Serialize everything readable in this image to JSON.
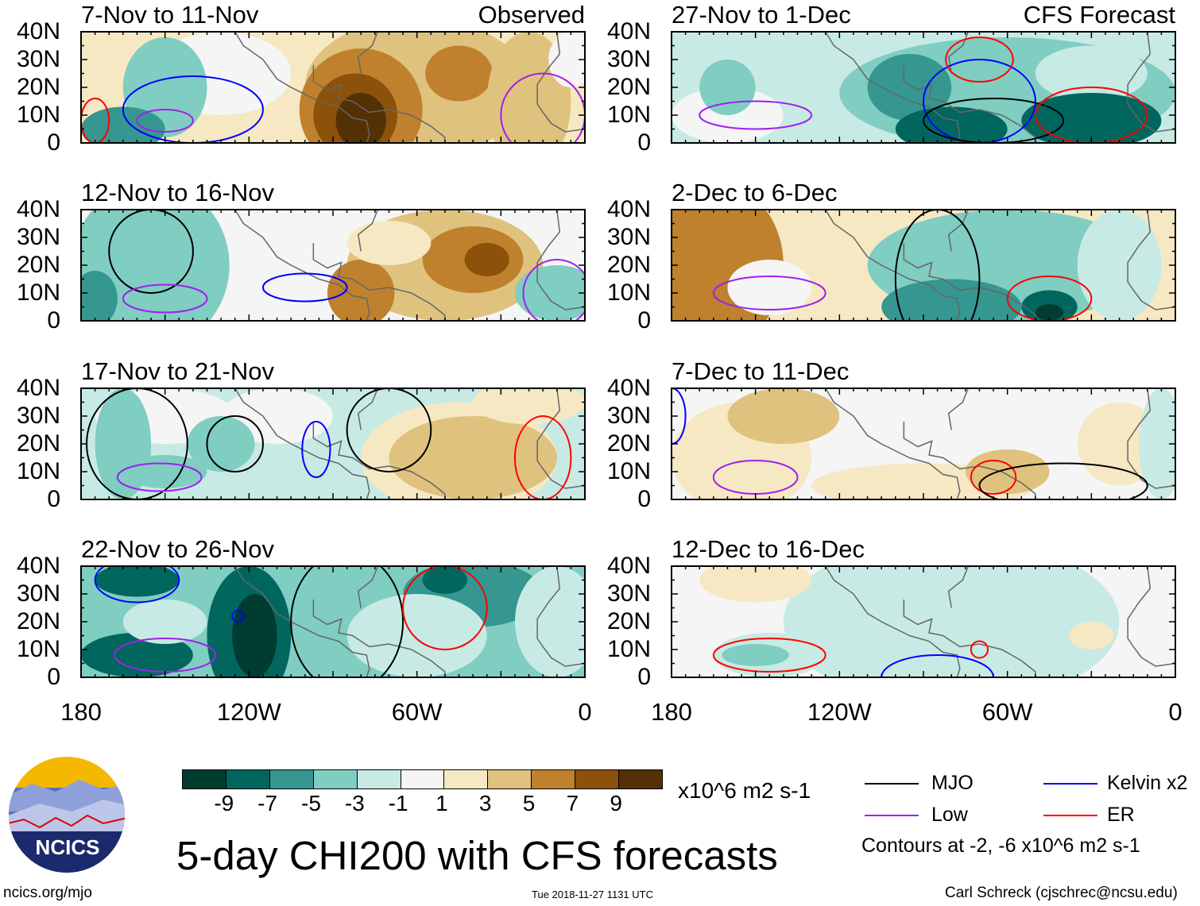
{
  "chart_data": {
    "type": "heatmap",
    "title": "5-day CHI200 with CFS forecasts",
    "units": "x10^6 m2 s-1",
    "colorbar": {
      "ticks": [
        "-9",
        "-7",
        "-5",
        "-3",
        "-1",
        "1",
        "3",
        "5",
        "7",
        "9"
      ],
      "colors": [
        "#003c30",
        "#01665e",
        "#35978f",
        "#80cdc1",
        "#c7eae5",
        "#f5f5f5",
        "#f6e8c3",
        "#dfc27d",
        "#bf812d",
        "#8c510a",
        "#543005"
      ]
    },
    "lat_ticks": [
      "40N",
      "30N",
      "20N",
      "10N",
      "0"
    ],
    "lon_ticks": [
      "180",
      "120W",
      "60W",
      "0"
    ],
    "lon_range": [
      -180,
      0
    ],
    "lat_range": [
      0,
      40
    ],
    "legend": {
      "items": [
        {
          "name": "MJO",
          "color": "#000000"
        },
        {
          "name": "Kelvin x2",
          "color": "#0000ff"
        },
        {
          "name": "Low",
          "color": "#a020f0"
        },
        {
          "name": "ER",
          "color": "#ff0000"
        }
      ],
      "note": "Contours at -2, -6 x10^6 m2 s-1"
    },
    "panels": [
      {
        "title": "7-Nov to 11-Nov",
        "tag": "Observed",
        "base": 6,
        "blobs": [
          [
            -130,
            25,
            25,
            15,
            5
          ],
          [
            -150,
            20,
            15,
            18,
            3
          ],
          [
            -165,
            5,
            15,
            8,
            2
          ],
          [
            -60,
            20,
            40,
            25,
            7
          ],
          [
            -80,
            12,
            22,
            22,
            8
          ],
          [
            -82,
            10,
            15,
            15,
            9
          ],
          [
            -80,
            8,
            9,
            10,
            10
          ],
          [
            -45,
            25,
            12,
            10,
            8
          ],
          [
            -20,
            15,
            15,
            25,
            7
          ],
          [
            -5,
            30,
            8,
            10,
            5
          ]
        ],
        "contours": [
          [
            "Kelvin",
            -140,
            12,
            25,
            12
          ],
          [
            "Low",
            -150,
            8,
            10,
            4
          ],
          [
            "ER",
            -175,
            8,
            5,
            8
          ],
          [
            "Low",
            -15,
            10,
            15,
            15
          ]
        ]
      },
      {
        "title": "27-Nov to 1-Dec",
        "tag": "CFS Forecast",
        "base": 4,
        "blobs": [
          [
            -160,
            10,
            20,
            10,
            5
          ],
          [
            -60,
            18,
            60,
            20,
            3
          ],
          [
            -30,
            25,
            20,
            10,
            4
          ],
          [
            -95,
            20,
            15,
            12,
            2
          ],
          [
            -30,
            8,
            25,
            10,
            1
          ],
          [
            -80,
            5,
            20,
            8,
            1
          ],
          [
            -160,
            20,
            10,
            10,
            3
          ]
        ],
        "contours": [
          [
            "Low",
            -150,
            10,
            20,
            5
          ],
          [
            "Kelvin",
            -70,
            15,
            20,
            15
          ],
          [
            "ER",
            -70,
            30,
            12,
            8
          ],
          [
            "MJO",
            -65,
            8,
            25,
            8
          ],
          [
            "ER",
            -30,
            10,
            20,
            10
          ]
        ]
      },
      {
        "title": "12-Nov to 16-Nov",
        "tag": "",
        "base": 5,
        "blobs": [
          [
            -155,
            20,
            28,
            30,
            3
          ],
          [
            -50,
            20,
            35,
            20,
            7
          ],
          [
            -40,
            22,
            18,
            12,
            8
          ],
          [
            -35,
            22,
            8,
            6,
            9
          ],
          [
            -80,
            10,
            12,
            12,
            8
          ],
          [
            -70,
            28,
            15,
            8,
            6
          ],
          [
            -175,
            8,
            8,
            10,
            2
          ],
          [
            -10,
            10,
            15,
            10,
            3
          ]
        ],
        "contours": [
          [
            "MJO",
            -155,
            25,
            15,
            15
          ],
          [
            "Low",
            -150,
            8,
            15,
            5
          ],
          [
            "Kelvin",
            -100,
            12,
            15,
            5
          ],
          [
            "Low",
            -10,
            10,
            12,
            12
          ]
        ]
      },
      {
        "title": "2-Dec to 6-Dec",
        "tag": "",
        "base": 6,
        "blobs": [
          [
            -165,
            20,
            25,
            30,
            8
          ],
          [
            -60,
            20,
            50,
            20,
            3
          ],
          [
            -80,
            5,
            25,
            10,
            2
          ],
          [
            -45,
            5,
            10,
            6,
            1
          ],
          [
            -45,
            3,
            5,
            3,
            0
          ],
          [
            -145,
            12,
            15,
            10,
            5
          ],
          [
            -20,
            20,
            15,
            20,
            4
          ]
        ],
        "contours": [
          [
            "Low",
            -145,
            10,
            20,
            6
          ],
          [
            "MJO",
            -85,
            15,
            15,
            25
          ],
          [
            "ER",
            -45,
            8,
            15,
            8
          ]
        ]
      },
      {
        "title": "17-Nov to 21-Nov",
        "tag": "",
        "base": 4,
        "blobs": [
          [
            -150,
            30,
            25,
            10,
            5
          ],
          [
            -110,
            30,
            20,
            10,
            5
          ],
          [
            -45,
            15,
            35,
            20,
            6
          ],
          [
            -40,
            15,
            30,
            15,
            7
          ],
          [
            -165,
            20,
            10,
            20,
            3
          ],
          [
            -130,
            20,
            12,
            10,
            3
          ],
          [
            -150,
            10,
            15,
            6,
            3
          ],
          [
            -20,
            35,
            20,
            8,
            6
          ]
        ],
        "contours": [
          [
            "MJO",
            -160,
            20,
            18,
            20
          ],
          [
            "MJO",
            -125,
            20,
            10,
            10
          ],
          [
            "Kelvin",
            -96,
            18,
            5,
            10
          ],
          [
            "MJO",
            -70,
            25,
            15,
            15
          ],
          [
            "Low",
            -152,
            8,
            15,
            5
          ],
          [
            "ER",
            -15,
            15,
            10,
            15
          ]
        ]
      },
      {
        "title": "7-Dec to 11-Dec",
        "tag": "",
        "base": 5,
        "blobs": [
          [
            -155,
            15,
            25,
            20,
            6
          ],
          [
            -140,
            30,
            20,
            10,
            7
          ],
          [
            -90,
            5,
            40,
            8,
            6
          ],
          [
            -60,
            10,
            15,
            8,
            7
          ],
          [
            -20,
            20,
            15,
            15,
            6
          ],
          [
            -5,
            20,
            8,
            20,
            4
          ]
        ],
        "contours": [
          [
            "Low",
            -150,
            8,
            15,
            6
          ],
          [
            "ER",
            -65,
            8,
            8,
            6
          ],
          [
            "MJO",
            -40,
            5,
            30,
            8
          ],
          [
            "Kelvin",
            -180,
            30,
            5,
            10
          ]
        ]
      },
      {
        "title": "22-Nov to 26-Nov",
        "tag": "",
        "base": 3,
        "blobs": [
          [
            -120,
            15,
            15,
            25,
            1
          ],
          [
            -118,
            15,
            8,
            15,
            0
          ],
          [
            -160,
            8,
            20,
            8,
            1
          ],
          [
            -160,
            35,
            15,
            6,
            1
          ],
          [
            -40,
            30,
            25,
            12,
            2
          ],
          [
            -50,
            35,
            8,
            5,
            1
          ],
          [
            -60,
            15,
            25,
            15,
            4
          ],
          [
            -10,
            20,
            15,
            20,
            4
          ],
          [
            -150,
            20,
            15,
            8,
            4
          ]
        ],
        "contours": [
          [
            "Kelvin",
            -160,
            35,
            15,
            8
          ],
          [
            "Low",
            -150,
            8,
            18,
            6
          ],
          [
            "MJO",
            -85,
            20,
            20,
            25
          ],
          [
            "ER",
            -50,
            25,
            15,
            15
          ],
          [
            "Kelvin",
            -124,
            22,
            2,
            2
          ]
        ]
      },
      {
        "title": "12-Dec to 16-Dec",
        "tag": "",
        "base": 5,
        "blobs": [
          [
            -80,
            20,
            60,
            30,
            4
          ],
          [
            -145,
            8,
            20,
            8,
            4
          ],
          [
            -150,
            8,
            12,
            4,
            3
          ],
          [
            -150,
            35,
            20,
            8,
            6
          ],
          [
            -30,
            15,
            8,
            5,
            6
          ]
        ],
        "contours": [
          [
            "ER",
            -145,
            8,
            20,
            6
          ],
          [
            "Kelvin",
            -85,
            0,
            20,
            8
          ],
          [
            "ER",
            -70,
            10,
            3,
            3
          ]
        ]
      }
    ]
  },
  "logo_text": "NCICS",
  "footer": {
    "left": "ncics.org/mjo",
    "center": "Tue 2018-11-27 1131 UTC",
    "right": "Carl Schreck (cjschrec@ncsu.edu)"
  }
}
